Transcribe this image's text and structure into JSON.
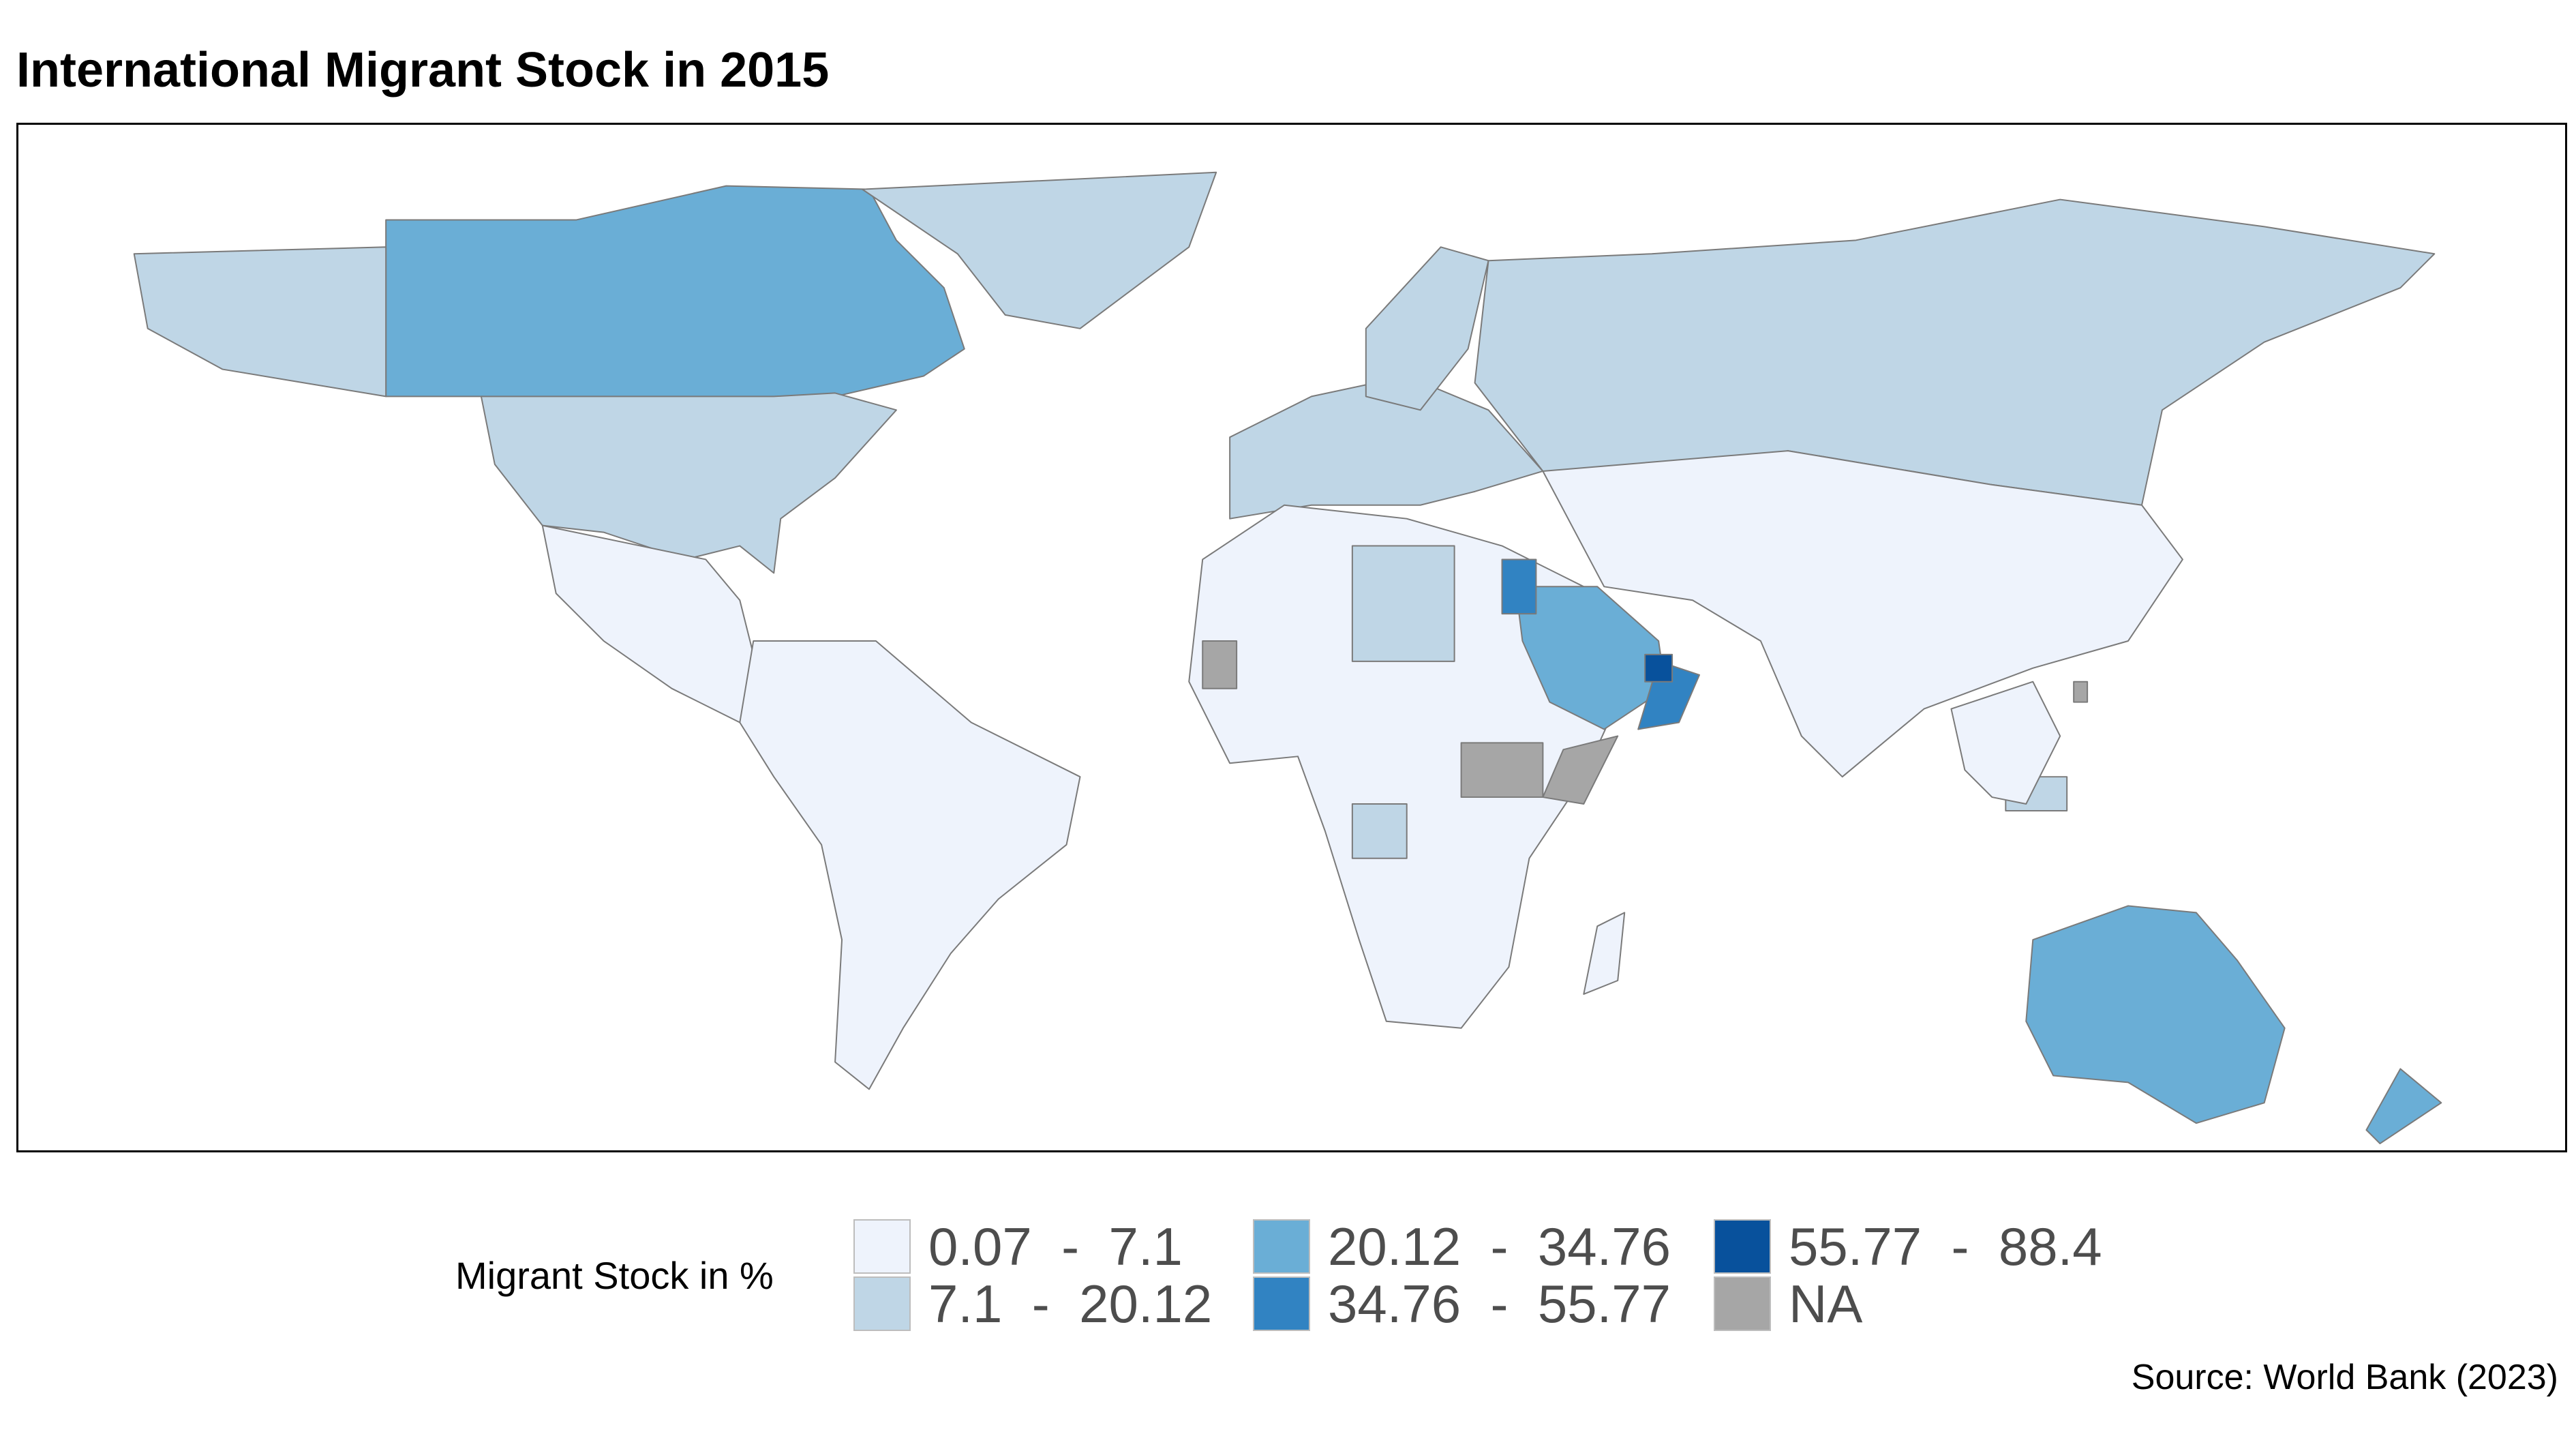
{
  "title": "International Migrant Stock in 2015",
  "legend": {
    "title": "Migrant Stock in %",
    "items": [
      {
        "label": "0.07  -  7.1",
        "color": "#eef3fc"
      },
      {
        "label": "7.1  -  20.12",
        "color": "#bfd6e6"
      },
      {
        "label": "20.12  -  34.76",
        "color": "#6aaed6"
      },
      {
        "label": "34.76  -  55.77",
        "color": "#3183c2"
      },
      {
        "label": "55.77  -  88.4",
        "color": "#08519c"
      },
      {
        "label": "NA",
        "color": "#a6a6a6"
      }
    ]
  },
  "source": "Source: World Bank (2023)",
  "map_regions": [
    {
      "name": "Canada",
      "class": 2
    },
    {
      "name": "United States",
      "class": 1
    },
    {
      "name": "Alaska",
      "class": 1
    },
    {
      "name": "Greenland",
      "class": 1
    },
    {
      "name": "Mexico and Central America",
      "class": 0
    },
    {
      "name": "South America",
      "class": 0
    },
    {
      "name": "Europe West",
      "class": 1
    },
    {
      "name": "Scandinavia",
      "class": 1
    },
    {
      "name": "Russia",
      "class": 1
    },
    {
      "name": "Africa",
      "class": 0
    },
    {
      "name": "Libya",
      "class": 1
    },
    {
      "name": "Gabon",
      "class": 1
    },
    {
      "name": "South Sudan",
      "class": 5
    },
    {
      "name": "Western Sahara",
      "class": 5
    },
    {
      "name": "Somalia",
      "class": 5
    },
    {
      "name": "Saudi Arabia",
      "class": 2
    },
    {
      "name": "Oman",
      "class": 3
    },
    {
      "name": "United Arab Emirates",
      "class": 4
    },
    {
      "name": "Israel and Jordan",
      "class": 3
    },
    {
      "name": "Asia",
      "class": 0
    },
    {
      "name": "Australia",
      "class": 2
    },
    {
      "name": "New Zealand",
      "class": 2
    },
    {
      "name": "Taiwan",
      "class": 5
    },
    {
      "name": "Malaysia",
      "class": 1
    },
    {
      "name": "Southeast Asia",
      "class": 0
    },
    {
      "name": "Madagascar",
      "class": 0
    }
  ]
}
